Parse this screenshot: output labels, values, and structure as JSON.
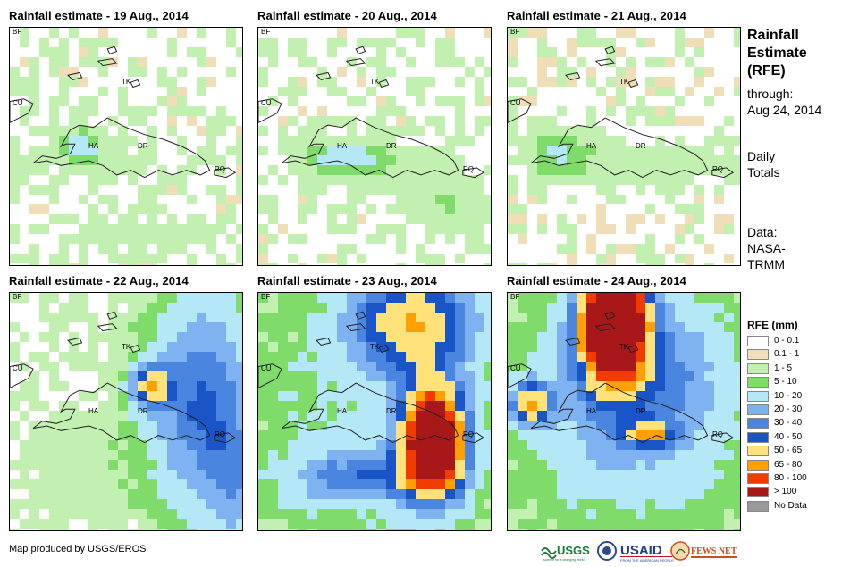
{
  "panels": [
    {
      "id": "p19",
      "title": "Rainfall estimate - 19 Aug., 2014",
      "intensity": "light-coastal"
    },
    {
      "id": "p20",
      "title": "Rainfall estimate - 20 Aug., 2014",
      "intensity": "light-southeast"
    },
    {
      "id": "p21",
      "title": "Rainfall estimate - 21 Aug., 2014",
      "intensity": "light-west"
    },
    {
      "id": "p22",
      "title": "Rainfall estimate - 22 Aug., 2014",
      "intensity": "moderate-east"
    },
    {
      "id": "p23",
      "title": "Rainfall estimate - 23 Aug., 2014",
      "intensity": "heavy-east-dr"
    },
    {
      "id": "p24",
      "title": "Rainfall estimate - 24 Aug., 2014",
      "intensity": "heavy-north"
    }
  ],
  "map_labels": {
    "bf": "BF",
    "cu": "CU",
    "tk": "TK",
    "ha": "HA",
    "dr": "DR",
    "rq": "RQ"
  },
  "side": {
    "title_lines": [
      "Rainfall",
      "Estimate",
      "(RFE)"
    ],
    "through": [
      "through:",
      "Aug 24, 2014"
    ],
    "totals": [
      "Daily",
      "Totals"
    ],
    "data_source": [
      "Data:",
      "NASA-",
      "TRMM"
    ]
  },
  "legend": {
    "title": "RFE (mm)",
    "items": [
      {
        "label": "0 - 0.1",
        "color": "#ffffff"
      },
      {
        "label": "0.1 - 1",
        "color": "#f0deb8"
      },
      {
        "label": "1 - 5",
        "color": "#c2f0b0"
      },
      {
        "label": "5 - 10",
        "color": "#7fdc6a"
      },
      {
        "label": "10 - 20",
        "color": "#b4e8f6"
      },
      {
        "label": "20 - 30",
        "color": "#7fb2f0"
      },
      {
        "label": "30 - 40",
        "color": "#4a86e0"
      },
      {
        "label": "40 - 50",
        "color": "#1a55c8"
      },
      {
        "label": "50 - 65",
        "color": "#ffe27a"
      },
      {
        "label": "65 - 80",
        "color": "#ffa000"
      },
      {
        "label": "80 - 100",
        "color": "#f03c00"
      },
      {
        "label": "> 100",
        "color": "#a81818"
      },
      {
        "label": "No Data",
        "color": "#999999"
      }
    ]
  },
  "footer": "Map produced by USGS/EROS",
  "logos": {
    "usgs": "USGS",
    "usgs_tagline": "science for a changing world",
    "usaid": "USAID",
    "usaid_tagline": "FROM THE AMERICAN PEOPLE",
    "fews": "FEWS NET"
  }
}
